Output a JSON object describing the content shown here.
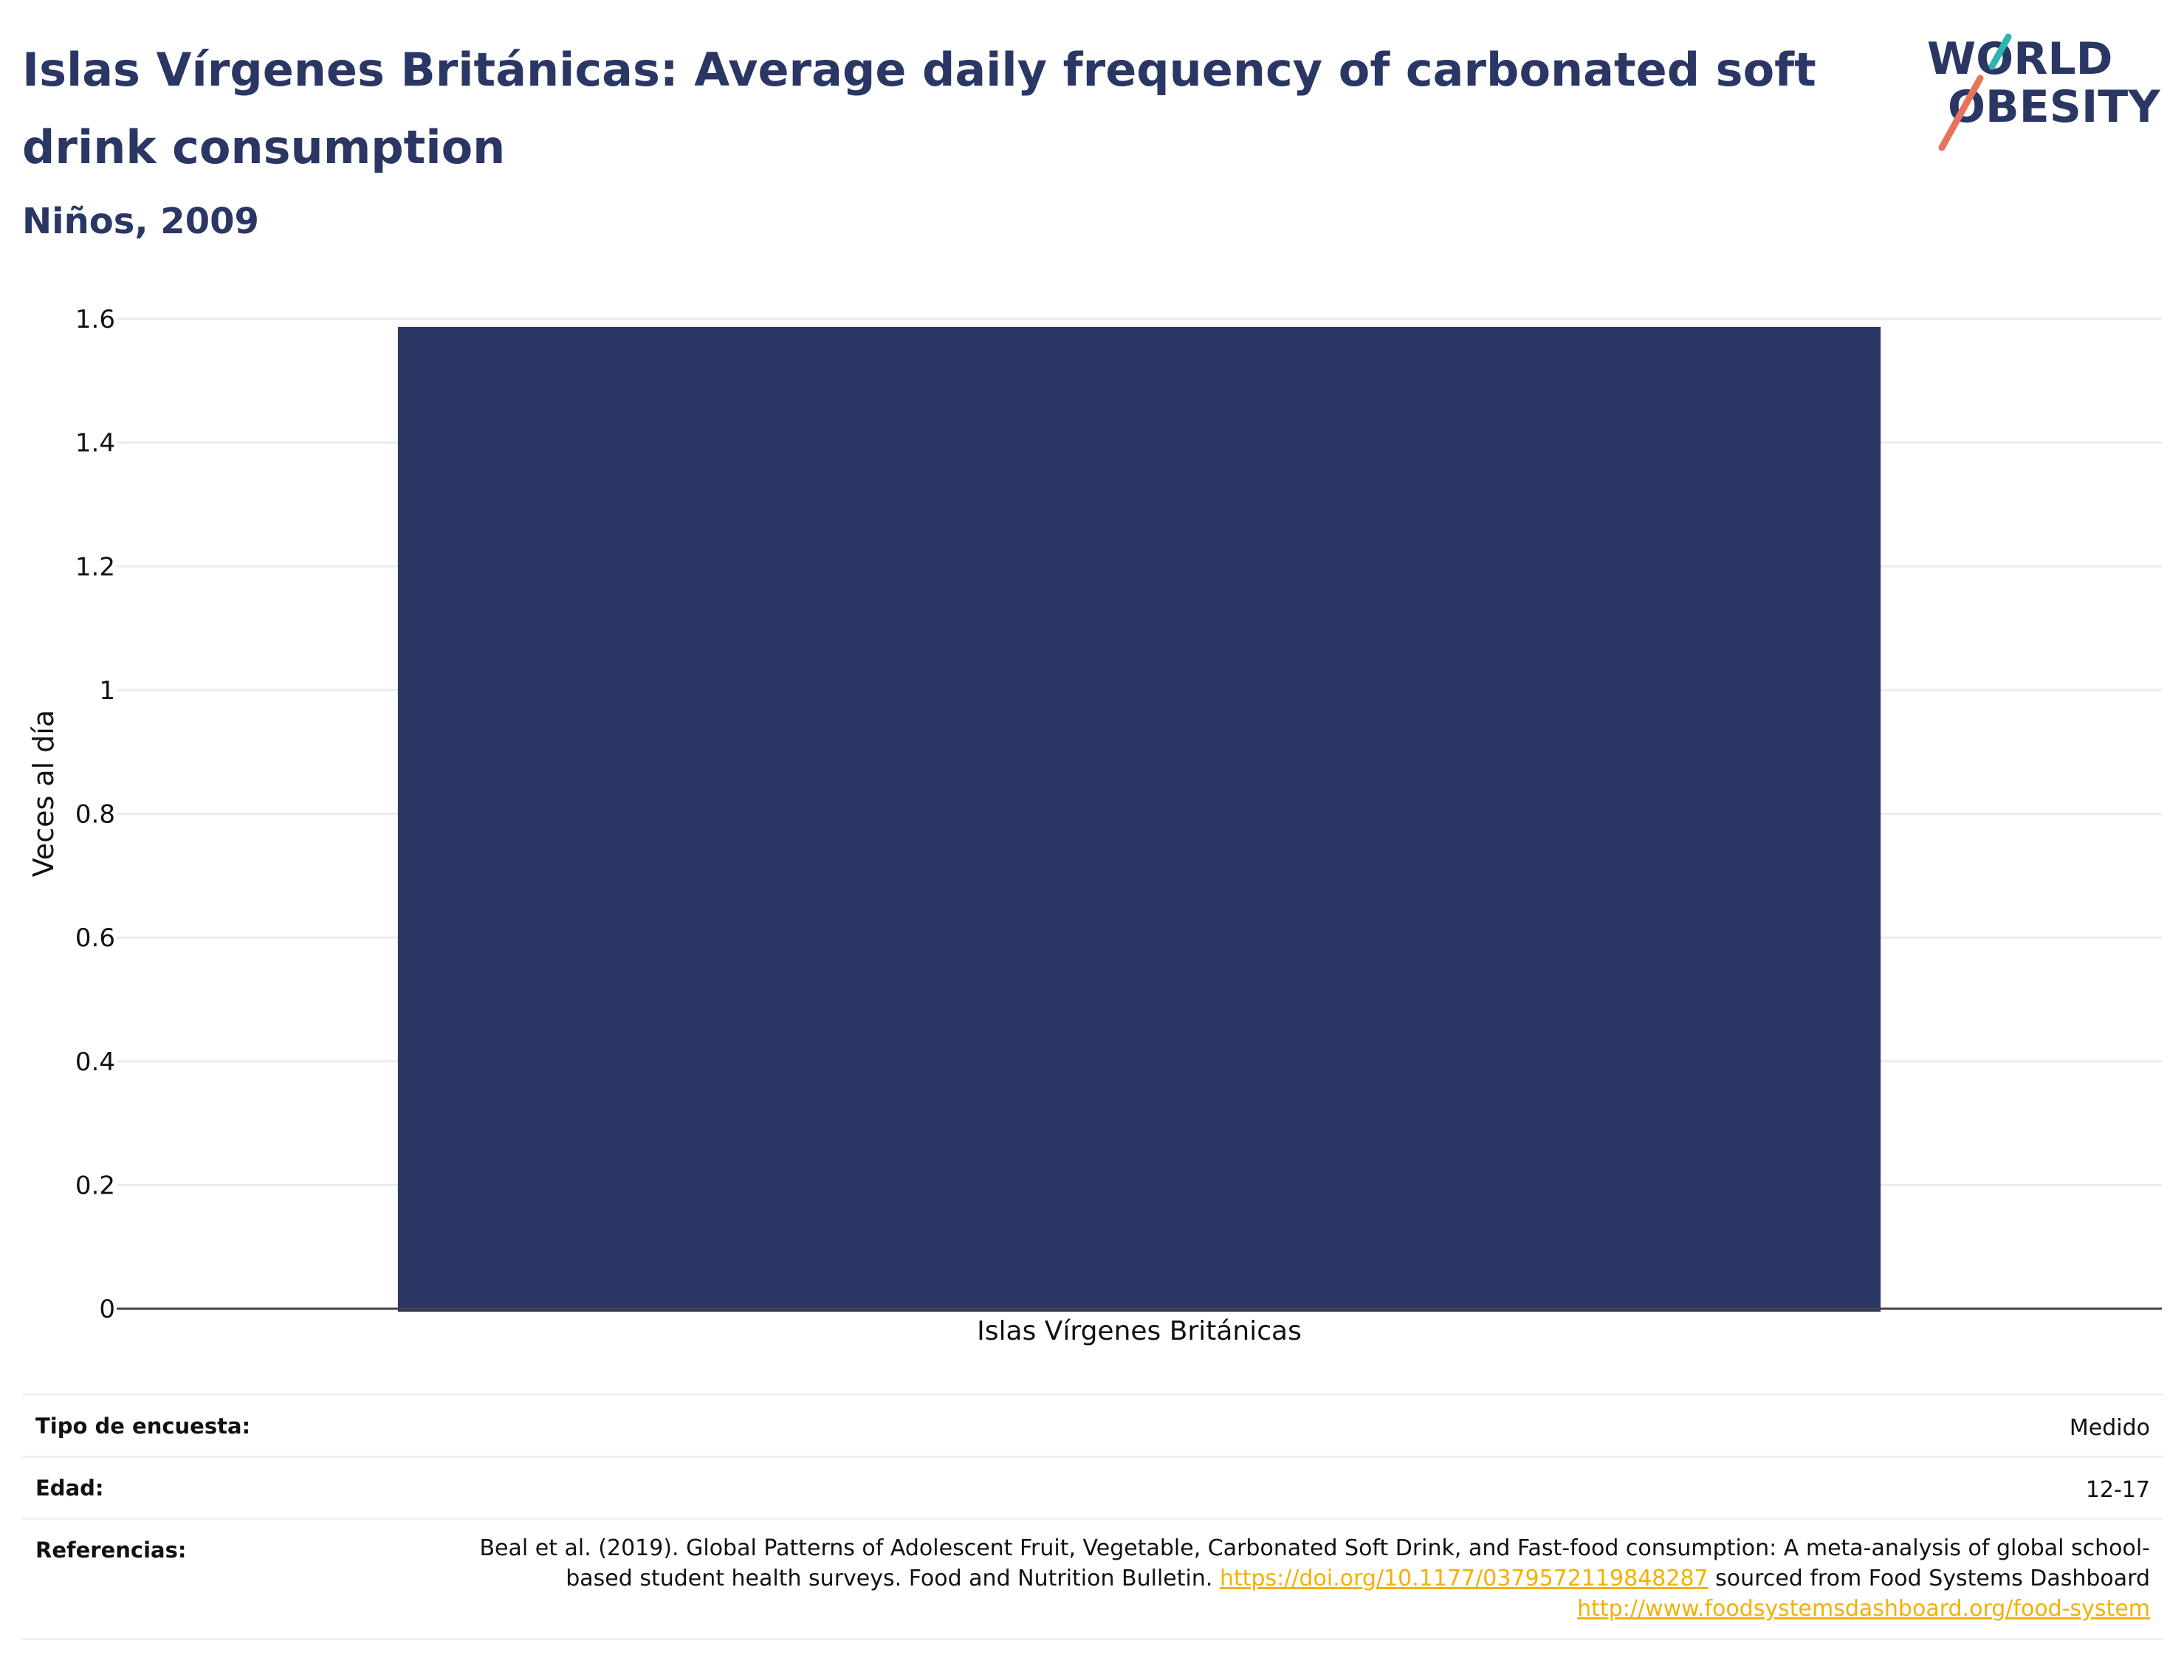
{
  "header": {
    "title": "Islas Vírgenes Británicas: Average daily frequency of carbonated soft drink consumption",
    "subtitle": "Niños, 2009",
    "logo_text_1": "WORLD",
    "logo_text_2": "OBESITY"
  },
  "colors": {
    "bar": "#2a3663",
    "title": "#2a3663",
    "link": "#f2b100",
    "logo_teal": "#2bb5b0",
    "logo_coral": "#e8735a"
  },
  "chart_data": {
    "type": "bar",
    "title": "",
    "categories": [
      "Islas Vírgenes Británicas"
    ],
    "values": [
      1.587
    ],
    "xlabel": "",
    "ylabel": "Veces al día",
    "ylim": [
      0,
      1.6
    ],
    "yticks": [
      "0",
      "0.2",
      "0.4",
      "0.6",
      "0.8",
      "1",
      "1.2",
      "1.4",
      "1.6"
    ],
    "grid": true,
    "legend": "none"
  },
  "meta": {
    "survey_label": "Tipo de encuesta:",
    "survey_value": "Medido",
    "age_label": "Edad:",
    "age_value": "12-17",
    "ref_label": "Referencias:",
    "ref_text_1": "Beal et al. (2019). Global Patterns of Adolescent Fruit, Vegetable, Carbonated Soft Drink, and Fast-food consumption: A meta-analysis of global school-based student health surveys. Food and Nutrition Bulletin.",
    "ref_link_1": "https://doi.org/10.1177/0379572119848287",
    "ref_text_2": "sourced from Food Systems Dashboard",
    "ref_link_2": "http://www.foodsystemsdashboard.org/food-system"
  }
}
